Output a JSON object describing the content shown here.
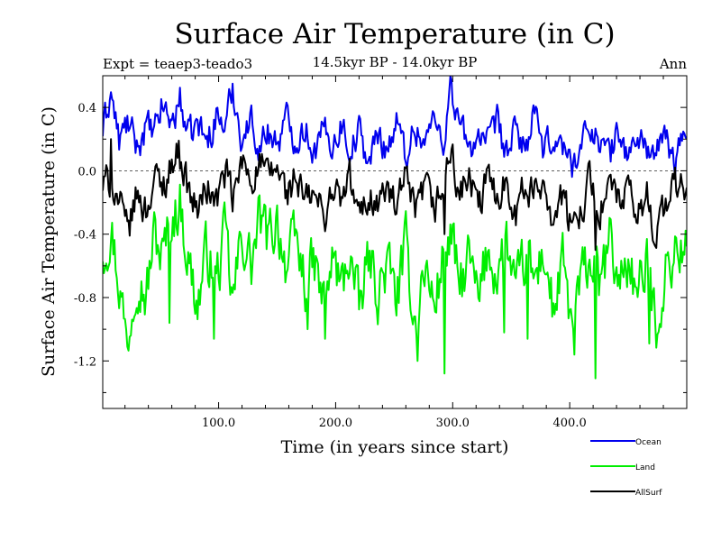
{
  "chart_data": {
    "type": "line",
    "title": "Surface Air Temperature (in C)",
    "subtitle": "14.5kyr BP - 14.0kyr BP",
    "experiment_label": "Expt = teaep3-teado3",
    "season_label": "Ann",
    "xlabel": "Time (in years since start)",
    "ylabel": "Surface Air Temperature (in C)",
    "xlim": [
      1,
      500
    ],
    "ylim": [
      -1.5,
      0.6
    ],
    "x_ticks": [
      100,
      200,
      300,
      400
    ],
    "x_tick_labels": [
      "100.0",
      "200.0",
      "300.0",
      "400.0"
    ],
    "y_ticks": [
      0.4,
      0.0,
      -0.4,
      -0.8,
      -1.2
    ],
    "y_tick_labels": [
      "0.4",
      "0.0",
      "-0.4",
      "-0.8",
      "-1.2"
    ],
    "zero_line": true,
    "series": [
      {
        "name": "Ocean",
        "color": "#0000ee",
        "anchors": [
          [
            1,
            0.25
          ],
          [
            8,
            0.5
          ],
          [
            15,
            0.18
          ],
          [
            22,
            0.3
          ],
          [
            30,
            0.15
          ],
          [
            38,
            0.28
          ],
          [
            45,
            0.22
          ],
          [
            52,
            0.42
          ],
          [
            60,
            0.3
          ],
          [
            67,
            0.45
          ],
          [
            75,
            0.2
          ],
          [
            82,
            0.3
          ],
          [
            90,
            0.18
          ],
          [
            98,
            0.35
          ],
          [
            106,
            0.28
          ],
          [
            112,
            0.52
          ],
          [
            120,
            0.2
          ],
          [
            128,
            0.32
          ],
          [
            135,
            0.15
          ],
          [
            142,
            0.25
          ],
          [
            150,
            0.18
          ],
          [
            158,
            0.32
          ],
          [
            166,
            0.2
          ],
          [
            174,
            0.28
          ],
          [
            182,
            0.12
          ],
          [
            190,
            0.25
          ],
          [
            198,
            0.18
          ],
          [
            205,
            0.3
          ],
          [
            212,
            0.15
          ],
          [
            220,
            0.25
          ],
          [
            228,
            0.05
          ],
          [
            236,
            0.22
          ],
          [
            244,
            0.15
          ],
          [
            252,
            0.3
          ],
          [
            260,
            0.1
          ],
          [
            268,
            0.28
          ],
          [
            276,
            0.18
          ],
          [
            284,
            0.32
          ],
          [
            292,
            0.2
          ],
          [
            298,
            0.52
          ],
          [
            306,
            0.3
          ],
          [
            314,
            0.12
          ],
          [
            322,
            0.25
          ],
          [
            330,
            0.15
          ],
          [
            338,
            0.3
          ],
          [
            346,
            0.1
          ],
          [
            354,
            0.25
          ],
          [
            362,
            0.15
          ],
          [
            370,
            0.35
          ],
          [
            378,
            0.1
          ],
          [
            386,
            0.22
          ],
          [
            394,
            0.15
          ],
          [
            402,
            0.05
          ],
          [
            410,
            0.15
          ],
          [
            418,
            0.3
          ],
          [
            426,
            0.18
          ],
          [
            434,
            0.1
          ],
          [
            442,
            0.25
          ],
          [
            450,
            0.08
          ],
          [
            458,
            0.22
          ],
          [
            466,
            0.15
          ],
          [
            474,
            0.1
          ],
          [
            482,
            0.2
          ],
          [
            490,
            0.05
          ],
          [
            500,
            0.28
          ]
        ]
      },
      {
        "name": "Land",
        "color": "#00ee00",
        "anchors": [
          [
            1,
            -0.5
          ],
          [
            8,
            -0.35
          ],
          [
            15,
            -0.7
          ],
          [
            22,
            -1.1
          ],
          [
            30,
            -0.6
          ],
          [
            38,
            -0.8
          ],
          [
            45,
            -0.4
          ],
          [
            52,
            -0.55
          ],
          [
            60,
            -0.3
          ],
          [
            67,
            -0.2
          ],
          [
            75,
            -0.6
          ],
          [
            82,
            -0.85
          ],
          [
            90,
            -0.5
          ],
          [
            98,
            -0.7
          ],
          [
            106,
            -0.4
          ],
          [
            112,
            -0.85
          ],
          [
            120,
            -0.4
          ],
          [
            128,
            -0.6
          ],
          [
            135,
            -0.3
          ],
          [
            142,
            -0.45
          ],
          [
            150,
            -0.3
          ],
          [
            158,
            -0.6
          ],
          [
            166,
            -0.45
          ],
          [
            174,
            -0.7
          ],
          [
            182,
            -0.6
          ],
          [
            190,
            -0.85
          ],
          [
            198,
            -0.55
          ],
          [
            205,
            -0.75
          ],
          [
            212,
            -0.5
          ],
          [
            220,
            -0.9
          ],
          [
            228,
            -0.55
          ],
          [
            236,
            -0.75
          ],
          [
            244,
            -0.6
          ],
          [
            252,
            -0.8
          ],
          [
            260,
            -0.5
          ],
          [
            268,
            -0.95
          ],
          [
            276,
            -0.6
          ],
          [
            284,
            -0.85
          ],
          [
            292,
            -0.55
          ],
          [
            298,
            -0.4
          ],
          [
            306,
            -0.75
          ],
          [
            314,
            -0.55
          ],
          [
            322,
            -0.85
          ],
          [
            330,
            -0.5
          ],
          [
            338,
            -0.65
          ],
          [
            346,
            -0.45
          ],
          [
            354,
            -0.8
          ],
          [
            362,
            -0.55
          ],
          [
            370,
            -0.7
          ],
          [
            378,
            -0.5
          ],
          [
            386,
            -0.9
          ],
          [
            394,
            -0.6
          ],
          [
            402,
            -1.0
          ],
          [
            410,
            -0.7
          ],
          [
            418,
            -0.55
          ],
          [
            426,
            -0.75
          ],
          [
            434,
            -0.45
          ],
          [
            442,
            -0.7
          ],
          [
            450,
            -0.55
          ],
          [
            458,
            -0.8
          ],
          [
            466,
            -0.6
          ],
          [
            474,
            -0.95
          ],
          [
            482,
            -0.65
          ],
          [
            490,
            -0.5
          ],
          [
            500,
            -0.5
          ]
        ],
        "extremes": [
          [
            22,
            -1.11
          ],
          [
            58,
            -0.96
          ],
          [
            96,
            -1.06
          ],
          [
            176,
            -1.0
          ],
          [
            191,
            -1.06
          ],
          [
            270,
            -1.2
          ],
          [
            293,
            -1.28
          ],
          [
            344,
            -1.02
          ],
          [
            364,
            -1.06
          ],
          [
            404,
            -1.16
          ],
          [
            422,
            -1.31
          ],
          [
            468,
            -1.09
          ]
        ]
      },
      {
        "name": "AllSurf",
        "color": "#000000",
        "anchors": [
          [
            1,
            -0.1
          ],
          [
            8,
            -0.05
          ],
          [
            15,
            -0.2
          ],
          [
            22,
            -0.4
          ],
          [
            30,
            -0.15
          ],
          [
            38,
            -0.25
          ],
          [
            45,
            -0.05
          ],
          [
            52,
            -0.1
          ],
          [
            60,
            0.05
          ],
          [
            67,
            0.12
          ],
          [
            75,
            -0.15
          ],
          [
            82,
            -0.25
          ],
          [
            90,
            -0.1
          ],
          [
            98,
            -0.2
          ],
          [
            106,
            0.0
          ],
          [
            112,
            -0.2
          ],
          [
            120,
            0.05
          ],
          [
            128,
            -0.05
          ],
          [
            135,
            0.05
          ],
          [
            142,
            -0.05
          ],
          [
            150,
            0.02
          ],
          [
            158,
            -0.15
          ],
          [
            166,
            -0.05
          ],
          [
            174,
            -0.2
          ],
          [
            182,
            -0.15
          ],
          [
            190,
            -0.3
          ],
          [
            198,
            -0.1
          ],
          [
            205,
            -0.2
          ],
          [
            212,
            -0.05
          ],
          [
            220,
            -0.3
          ],
          [
            228,
            -0.15
          ],
          [
            236,
            -0.2
          ],
          [
            244,
            -0.12
          ],
          [
            252,
            -0.25
          ],
          [
            260,
            -0.05
          ],
          [
            268,
            -0.3
          ],
          [
            276,
            -0.1
          ],
          [
            284,
            -0.25
          ],
          [
            292,
            -0.1
          ],
          [
            298,
            0.12
          ],
          [
            306,
            -0.15
          ],
          [
            314,
            -0.05
          ],
          [
            322,
            -0.25
          ],
          [
            330,
            -0.05
          ],
          [
            338,
            -0.15
          ],
          [
            346,
            -0.05
          ],
          [
            354,
            -0.25
          ],
          [
            362,
            -0.1
          ],
          [
            370,
            -0.15
          ],
          [
            378,
            -0.05
          ],
          [
            386,
            -0.3
          ],
          [
            394,
            -0.15
          ],
          [
            402,
            -0.4
          ],
          [
            410,
            -0.2
          ],
          [
            418,
            -0.05
          ],
          [
            426,
            -0.25
          ],
          [
            434,
            -0.1
          ],
          [
            442,
            -0.2
          ],
          [
            450,
            -0.15
          ],
          [
            458,
            -0.3
          ],
          [
            466,
            -0.15
          ],
          [
            474,
            -0.4
          ],
          [
            482,
            -0.2
          ],
          [
            490,
            -0.1
          ],
          [
            500,
            -0.1
          ]
        ],
        "extremes": [
          [
            8,
            0.2
          ],
          [
            66,
            0.19
          ],
          [
            293,
            -0.4
          ],
          [
            422,
            -0.5
          ]
        ]
      }
    ],
    "legend": [
      {
        "label": "Ocean",
        "color": "#0000ee"
      },
      {
        "label": "Land",
        "color": "#00ee00"
      },
      {
        "label": "AllSurf",
        "color": "#000000"
      }
    ]
  }
}
